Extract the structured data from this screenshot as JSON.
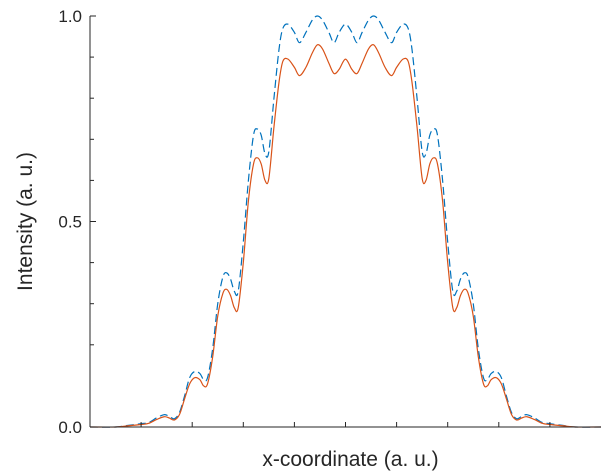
{
  "chart_data": {
    "type": "line",
    "title": "",
    "xlabel": "x-coordinate (a. u.)",
    "ylabel": "Intensity (a. u.)",
    "xlim": [
      -1,
      1
    ],
    "ylim": [
      0,
      1
    ],
    "yticks": [
      {
        "value": 0,
        "label": "0.0"
      },
      {
        "value": 0.5,
        "label": "0.5"
      },
      {
        "value": 1,
        "label": "1.0"
      }
    ],
    "yminor_ticks": [
      0.2,
      0.3,
      0.4,
      0.6,
      0.7,
      0.8,
      0.9
    ],
    "xticks": [
      -0.8,
      -0.6,
      -0.4,
      -0.2,
      0,
      0.2,
      0.4,
      0.6,
      0.8
    ],
    "x_tick_labels_shown": false,
    "grid": false,
    "legend": "none",
    "series": [
      {
        "style": "dashed",
        "color": "#0072BD",
        "points": [
          [
            -1.0,
            0.0
          ],
          [
            -0.9,
            0.0
          ],
          [
            -0.85,
            0.004
          ],
          [
            -0.8,
            0.008
          ],
          [
            -0.77,
            0.011
          ],
          [
            -0.74,
            0.022
          ],
          [
            -0.71,
            0.03
          ],
          [
            -0.69,
            0.026
          ],
          [
            -0.67,
            0.02
          ],
          [
            -0.65,
            0.035
          ],
          [
            -0.63,
            0.075
          ],
          [
            -0.61,
            0.12
          ],
          [
            -0.59,
            0.135
          ],
          [
            -0.57,
            0.13
          ],
          [
            -0.555,
            0.115
          ],
          [
            -0.54,
            0.12
          ],
          [
            -0.52,
            0.19
          ],
          [
            -0.5,
            0.3
          ],
          [
            -0.48,
            0.365
          ],
          [
            -0.465,
            0.375
          ],
          [
            -0.45,
            0.36
          ],
          [
            -0.435,
            0.33
          ],
          [
            -0.42,
            0.33
          ],
          [
            -0.4,
            0.45
          ],
          [
            -0.38,
            0.6
          ],
          [
            -0.36,
            0.71
          ],
          [
            -0.345,
            0.725
          ],
          [
            -0.33,
            0.71
          ],
          [
            -0.315,
            0.665
          ],
          [
            -0.3,
            0.67
          ],
          [
            -0.28,
            0.8
          ],
          [
            -0.26,
            0.92
          ],
          [
            -0.245,
            0.97
          ],
          [
            -0.225,
            0.98
          ],
          [
            -0.2,
            0.96
          ],
          [
            -0.18,
            0.935
          ],
          [
            -0.155,
            0.96
          ],
          [
            -0.13,
            0.99
          ],
          [
            -0.11,
            1.0
          ],
          [
            -0.09,
            0.99
          ],
          [
            -0.065,
            0.96
          ],
          [
            -0.045,
            0.935
          ],
          [
            -0.025,
            0.96
          ],
          [
            0.0,
            0.98
          ],
          [
            0.025,
            0.96
          ],
          [
            0.045,
            0.935
          ],
          [
            0.065,
            0.96
          ],
          [
            0.09,
            0.99
          ],
          [
            0.11,
            1.0
          ],
          [
            0.13,
            0.99
          ],
          [
            0.155,
            0.96
          ],
          [
            0.18,
            0.935
          ],
          [
            0.2,
            0.96
          ],
          [
            0.225,
            0.98
          ],
          [
            0.245,
            0.97
          ],
          [
            0.26,
            0.92
          ],
          [
            0.28,
            0.8
          ],
          [
            0.3,
            0.67
          ],
          [
            0.315,
            0.665
          ],
          [
            0.33,
            0.71
          ],
          [
            0.345,
            0.725
          ],
          [
            0.36,
            0.71
          ],
          [
            0.38,
            0.6
          ],
          [
            0.4,
            0.45
          ],
          [
            0.42,
            0.33
          ],
          [
            0.435,
            0.33
          ],
          [
            0.45,
            0.36
          ],
          [
            0.465,
            0.375
          ],
          [
            0.48,
            0.365
          ],
          [
            0.5,
            0.3
          ],
          [
            0.52,
            0.19
          ],
          [
            0.54,
            0.12
          ],
          [
            0.555,
            0.115
          ],
          [
            0.57,
            0.13
          ],
          [
            0.59,
            0.135
          ],
          [
            0.61,
            0.12
          ],
          [
            0.63,
            0.075
          ],
          [
            0.65,
            0.035
          ],
          [
            0.67,
            0.02
          ],
          [
            0.69,
            0.026
          ],
          [
            0.71,
            0.03
          ],
          [
            0.74,
            0.022
          ],
          [
            0.77,
            0.011
          ],
          [
            0.8,
            0.008
          ],
          [
            0.85,
            0.004
          ],
          [
            0.9,
            0.0
          ],
          [
            1.0,
            0.0
          ]
        ]
      },
      {
        "style": "solid",
        "color": "#D95319",
        "points": [
          [
            -1.0,
            0.0
          ],
          [
            -0.9,
            0.0
          ],
          [
            -0.85,
            0.003
          ],
          [
            -0.8,
            0.006
          ],
          [
            -0.77,
            0.009
          ],
          [
            -0.74,
            0.018
          ],
          [
            -0.71,
            0.025
          ],
          [
            -0.69,
            0.022
          ],
          [
            -0.67,
            0.017
          ],
          [
            -0.65,
            0.03
          ],
          [
            -0.63,
            0.068
          ],
          [
            -0.61,
            0.105
          ],
          [
            -0.59,
            0.12
          ],
          [
            -0.57,
            0.115
          ],
          [
            -0.555,
            0.1
          ],
          [
            -0.54,
            0.105
          ],
          [
            -0.52,
            0.17
          ],
          [
            -0.5,
            0.27
          ],
          [
            -0.48,
            0.325
          ],
          [
            -0.465,
            0.335
          ],
          [
            -0.45,
            0.32
          ],
          [
            -0.435,
            0.29
          ],
          [
            -0.42,
            0.29
          ],
          [
            -0.4,
            0.4
          ],
          [
            -0.38,
            0.55
          ],
          [
            -0.36,
            0.64
          ],
          [
            -0.345,
            0.655
          ],
          [
            -0.33,
            0.64
          ],
          [
            -0.315,
            0.6
          ],
          [
            -0.3,
            0.605
          ],
          [
            -0.28,
            0.73
          ],
          [
            -0.26,
            0.84
          ],
          [
            -0.245,
            0.89
          ],
          [
            -0.225,
            0.895
          ],
          [
            -0.2,
            0.875
          ],
          [
            -0.18,
            0.855
          ],
          [
            -0.155,
            0.875
          ],
          [
            -0.13,
            0.91
          ],
          [
            -0.11,
            0.93
          ],
          [
            -0.09,
            0.92
          ],
          [
            -0.065,
            0.885
          ],
          [
            -0.045,
            0.86
          ],
          [
            -0.025,
            0.87
          ],
          [
            0.0,
            0.895
          ],
          [
            0.025,
            0.87
          ],
          [
            0.045,
            0.86
          ],
          [
            0.065,
            0.885
          ],
          [
            0.09,
            0.92
          ],
          [
            0.11,
            0.93
          ],
          [
            0.13,
            0.91
          ],
          [
            0.155,
            0.875
          ],
          [
            0.18,
            0.855
          ],
          [
            0.2,
            0.875
          ],
          [
            0.225,
            0.895
          ],
          [
            0.245,
            0.89
          ],
          [
            0.26,
            0.84
          ],
          [
            0.28,
            0.73
          ],
          [
            0.3,
            0.605
          ],
          [
            0.315,
            0.6
          ],
          [
            0.33,
            0.64
          ],
          [
            0.345,
            0.655
          ],
          [
            0.36,
            0.64
          ],
          [
            0.38,
            0.55
          ],
          [
            0.4,
            0.4
          ],
          [
            0.42,
            0.29
          ],
          [
            0.435,
            0.29
          ],
          [
            0.45,
            0.32
          ],
          [
            0.465,
            0.335
          ],
          [
            0.48,
            0.325
          ],
          [
            0.5,
            0.27
          ],
          [
            0.52,
            0.17
          ],
          [
            0.54,
            0.105
          ],
          [
            0.555,
            0.1
          ],
          [
            0.57,
            0.115
          ],
          [
            0.59,
            0.12
          ],
          [
            0.61,
            0.105
          ],
          [
            0.63,
            0.068
          ],
          [
            0.65,
            0.03
          ],
          [
            0.67,
            0.017
          ],
          [
            0.69,
            0.022
          ],
          [
            0.71,
            0.025
          ],
          [
            0.74,
            0.018
          ],
          [
            0.77,
            0.009
          ],
          [
            0.8,
            0.006
          ],
          [
            0.85,
            0.003
          ],
          [
            0.9,
            0.0
          ],
          [
            1.0,
            0.0
          ]
        ]
      }
    ]
  }
}
